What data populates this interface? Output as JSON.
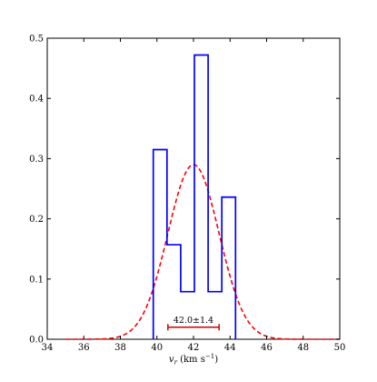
{
  "chart_data": {
    "type": "histogram",
    "xlabel": "v_r (km s⁻¹)",
    "xlabel_parts": {
      "var": "v",
      "sub": "r",
      "open": " (km s",
      "sup": "−1",
      "close": ")"
    },
    "ylabel": "",
    "xlim": [
      34,
      50
    ],
    "ylim": [
      0.0,
      0.5
    ],
    "xticks": [
      34,
      36,
      38,
      40,
      42,
      44,
      46,
      48,
      50
    ],
    "xtick_labels": [
      "34",
      "36",
      "38",
      "40",
      "42",
      "44",
      "46",
      "48",
      "50"
    ],
    "yticks": [
      0.0,
      0.1,
      0.2,
      0.3,
      0.4,
      0.5
    ],
    "ytick_labels": [
      "0.0",
      "0.1",
      "0.2",
      "0.3",
      "0.4",
      "0.5"
    ],
    "grid": false,
    "histogram": {
      "color": "#0000ff",
      "bin_edges": [
        39.8,
        40.55,
        41.3,
        42.05,
        42.8,
        43.55,
        44.3
      ],
      "values": [
        0.315,
        0.157,
        0.079,
        0.472,
        0.079,
        0.236
      ]
    },
    "gaussian_fit": {
      "color": "#ff0000",
      "style": "dashed",
      "mean": 42.0,
      "sigma": 1.4,
      "peak": 0.29
    },
    "error_bar": {
      "color": "#cc0000",
      "center": 42.0,
      "half_width": 1.4,
      "y": 0.02,
      "label": "42.0±1.4"
    }
  }
}
